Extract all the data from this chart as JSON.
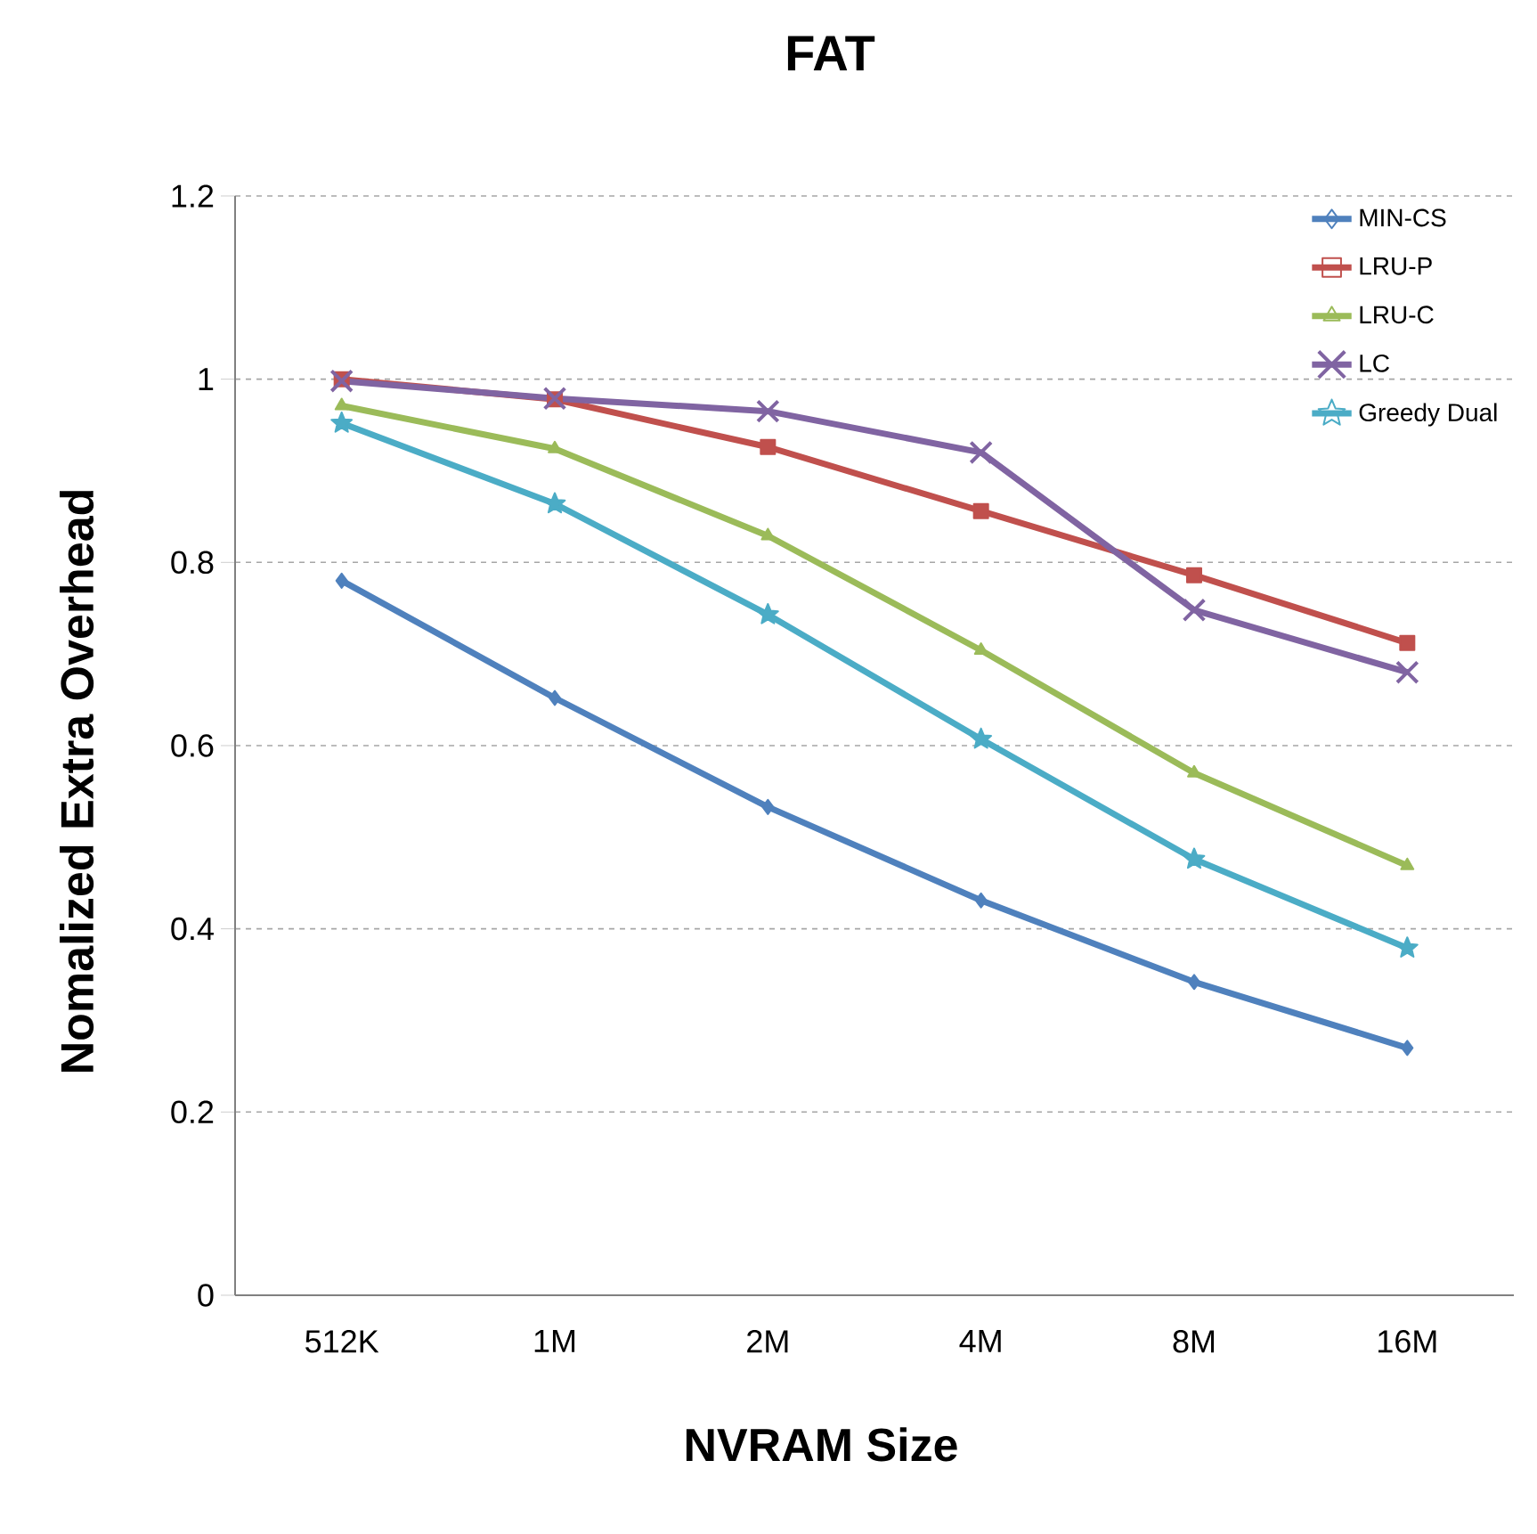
{
  "chart_data": {
    "type": "line",
    "title": "FAT",
    "xlabel": "NVRAM Size",
    "ylabel": "Nomalized Extra Overhead",
    "categories": [
      "512K",
      "1M",
      "2M",
      "4M",
      "8M",
      "16M"
    ],
    "series": [
      {
        "name": "MIN-CS",
        "color": "#4f81bd",
        "marker": "diamond",
        "values": [
          0.78,
          0.652,
          0.533,
          0.431,
          0.342,
          0.27
        ]
      },
      {
        "name": "LRU-P",
        "color": "#c0504d",
        "marker": "square",
        "values": [
          1.0,
          0.978,
          0.926,
          0.856,
          0.786,
          0.712
        ]
      },
      {
        "name": "LRU-C",
        "color": "#9bbb59",
        "marker": "triangle",
        "values": [
          0.971,
          0.924,
          0.829,
          0.704,
          0.57,
          0.469
        ]
      },
      {
        "name": "LC",
        "color": "#8064a2",
        "marker": "cross",
        "values": [
          0.998,
          0.979,
          0.965,
          0.92,
          0.748,
          0.68
        ]
      },
      {
        "name": "Greedy Dual",
        "color": "#4bacc6",
        "marker": "star",
        "values": [
          0.952,
          0.864,
          0.743,
          0.607,
          0.476,
          0.379
        ]
      }
    ],
    "ylim": [
      0,
      1.2
    ],
    "yticks": [
      0,
      0.2,
      0.4,
      0.6,
      0.8,
      1,
      1.2
    ],
    "grid": "y",
    "legend": "top right",
    "line_style": "solid"
  }
}
